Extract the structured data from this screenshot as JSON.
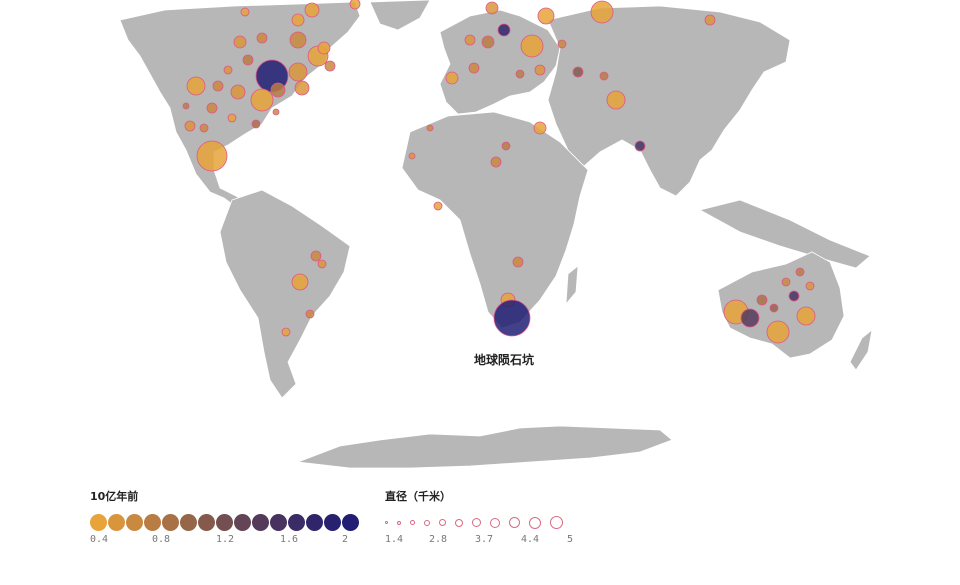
{
  "annotation": "地球陨石坑",
  "legend": {
    "age_title": "10亿年前",
    "age_ticks": [
      "0.4",
      "0.8",
      "1.2",
      "1.6",
      "2"
    ],
    "age_colors": [
      "#e8a33a",
      "#d9953c",
      "#c9893f",
      "#b97d43",
      "#a87246",
      "#966649",
      "#855a4d",
      "#744f51",
      "#644556",
      "#553b5b",
      "#473260",
      "#3b2b66",
      "#30256b",
      "#282170",
      "#211e73"
    ],
    "size_title": "直径（千米）",
    "size_ticks": [
      "1.4",
      "2.8",
      "3.7",
      "4.4",
      "5"
    ]
  },
  "colors": {
    "land": "#b7b7b7",
    "border": "#ffffff",
    "marker_stroke": "#e0558c"
  }
}
